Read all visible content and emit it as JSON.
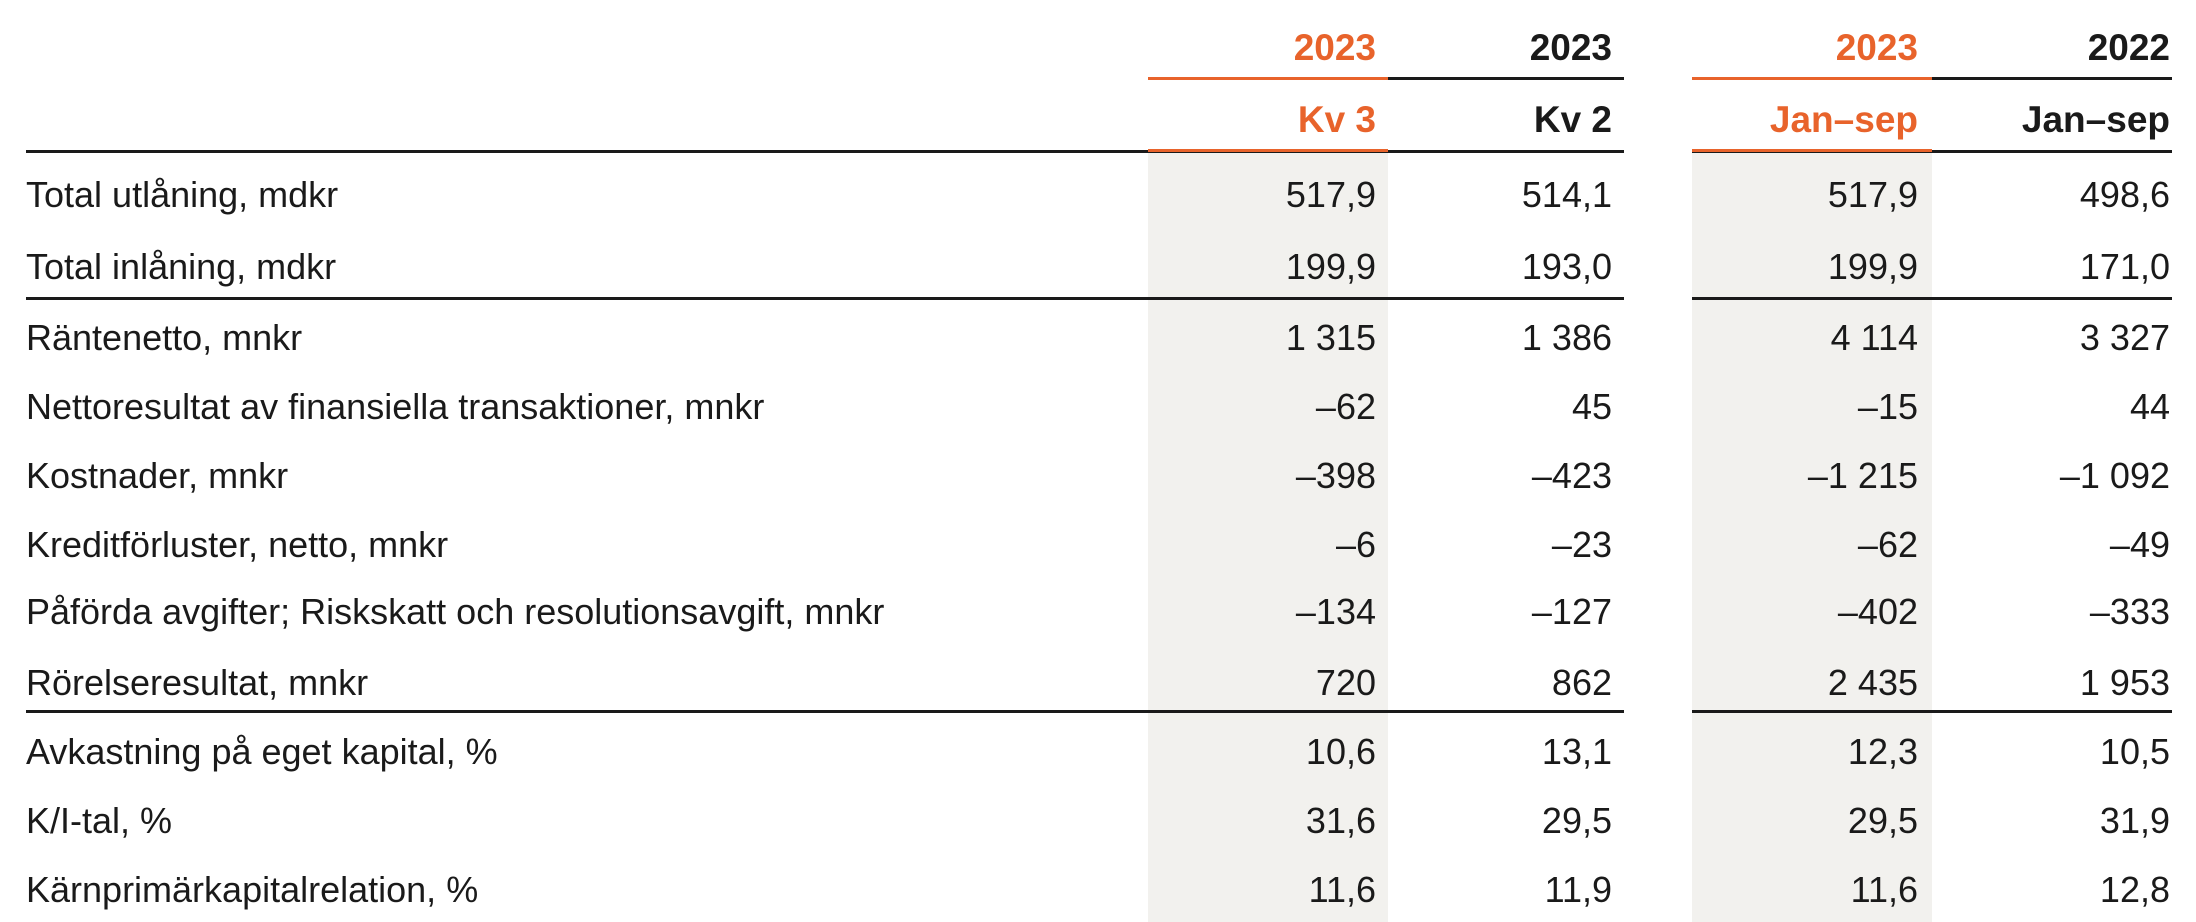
{
  "columns": [
    {
      "year": "2023",
      "period": "Kv 3",
      "highlight": true
    },
    {
      "year": "2023",
      "period": "Kv 2",
      "highlight": false
    },
    {
      "year": "2023",
      "period": "Jan–sep",
      "highlight": true
    },
    {
      "year": "2022",
      "period": "Jan–sep",
      "highlight": false
    }
  ],
  "rows": [
    {
      "label": "Total utlåning, mdkr",
      "values": [
        "517,9",
        "514,1",
        "517,9",
        "498,6"
      ]
    },
    {
      "label": "Total inlåning, mdkr",
      "values": [
        "199,9",
        "193,0",
        "199,9",
        "171,0"
      ]
    },
    {
      "label": "Räntenetto, mnkr",
      "values": [
        "1 315",
        "1 386",
        "4 114",
        "3 327"
      ]
    },
    {
      "label": "Nettoresultat av finansiella transaktioner, mnkr",
      "values": [
        "–62",
        "45",
        "–15",
        "44"
      ]
    },
    {
      "label": "Kostnader, mnkr",
      "values": [
        "–398",
        "–423",
        "–1 215",
        "–1 092"
      ]
    },
    {
      "label": "Kreditförluster, netto, mnkr",
      "values": [
        "–6",
        "–23",
        "–62",
        "–49"
      ]
    },
    {
      "label": "Påförda avgifter; Riskskatt och resolutionsavgift, mnkr",
      "values": [
        "–134",
        "–127",
        "–402",
        "–333"
      ]
    },
    {
      "label": "Rörelseresultat, mnkr",
      "values": [
        "720",
        "862",
        "2 435",
        "1 953"
      ]
    },
    {
      "label": "Avkastning på eget kapital, %",
      "values": [
        "10,6",
        "13,1",
        "12,3",
        "10,5"
      ]
    },
    {
      "label": "K/I-tal, %",
      "values": [
        "31,6",
        "29,5",
        "29,5",
        "31,9"
      ]
    },
    {
      "label": "Kärnprimärkapitalrelation, %",
      "values": [
        "11,6",
        "11,9",
        "11,6",
        "12,8"
      ]
    }
  ],
  "colors": {
    "accent": "#e8632b",
    "text": "#1a1a1a",
    "shade": "#f2f1ee"
  }
}
